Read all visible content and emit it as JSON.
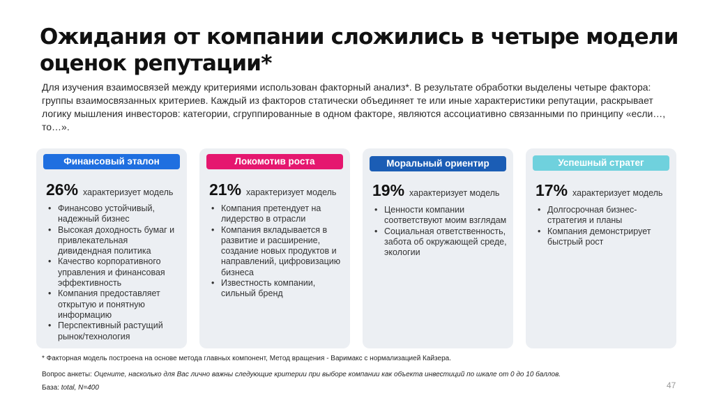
{
  "title": "Ожидания от компании сложились в четыре модели оценок репутации*",
  "intro": "Для изучения взаимосвязей между критериями использован факторный анализ*. В результате обработки выделены четыре фактора: группы взаимосвязанных критериев. Каждый из факторов статически объединяет те или иные характеристики репутации, раскрывает логику мышления инвесторов: категории, сгруппированные в одном факторе, являются ассоциативно связанными по принципу «если…, то…».",
  "cards": [
    {
      "label": "Финансовый эталон",
      "color": "#1f6fe0",
      "percent": "26%",
      "caption": "характеризует модель",
      "bullets": [
        "Финансово устойчивый, надежный бизнес",
        "Высокая доходность бумаг и привлекательная дивидендная политика",
        "Качество корпоративного управления и финансовая эффективность",
        "Компания предоставляет открытую и понятную информацию",
        "Перспективный растущий рынок/технология"
      ]
    },
    {
      "label": "Локомотив роста",
      "color": "#e5176f",
      "percent": "21%",
      "caption": "характеризует модель",
      "bullets": [
        "Компания претендует на лидерство в отрасли",
        "Компания вкладывается в развитие и расширение, создание новых продуктов и направлений, цифровизацию бизнеса",
        "Известность компании, сильный бренд"
      ]
    },
    {
      "label": "Моральный ориентир",
      "color": "#1b5db5",
      "percent": "19%",
      "caption": "характеризует модель",
      "bullets": [
        "Ценности компании соответствуют моим взглядам",
        "Социальная ответственность, забота об окружающей среде, экологии"
      ]
    },
    {
      "label": "Успешный стратег",
      "color": "#6fd1dd",
      "percent": "17%",
      "caption": "характеризует модель",
      "bullets": [
        "Долгосрочная бизнес-стратегия и планы",
        "Компания демонстрирует быстрый рост"
      ]
    }
  ],
  "footnote": "* Факторная модель построена на основе метода главных компонент, Метод вращения - Варимакс с нормализацией Кайзера.",
  "question_label": "Вопрос анкеты:",
  "question_text": "Оцените, насколько для Вас лично важны следующие критерии при выборе компании как объекта инвестиций по шкале от 0 до 10 баллов.",
  "base_label": "База:",
  "base_text": "total, N=400",
  "page_number": "47"
}
